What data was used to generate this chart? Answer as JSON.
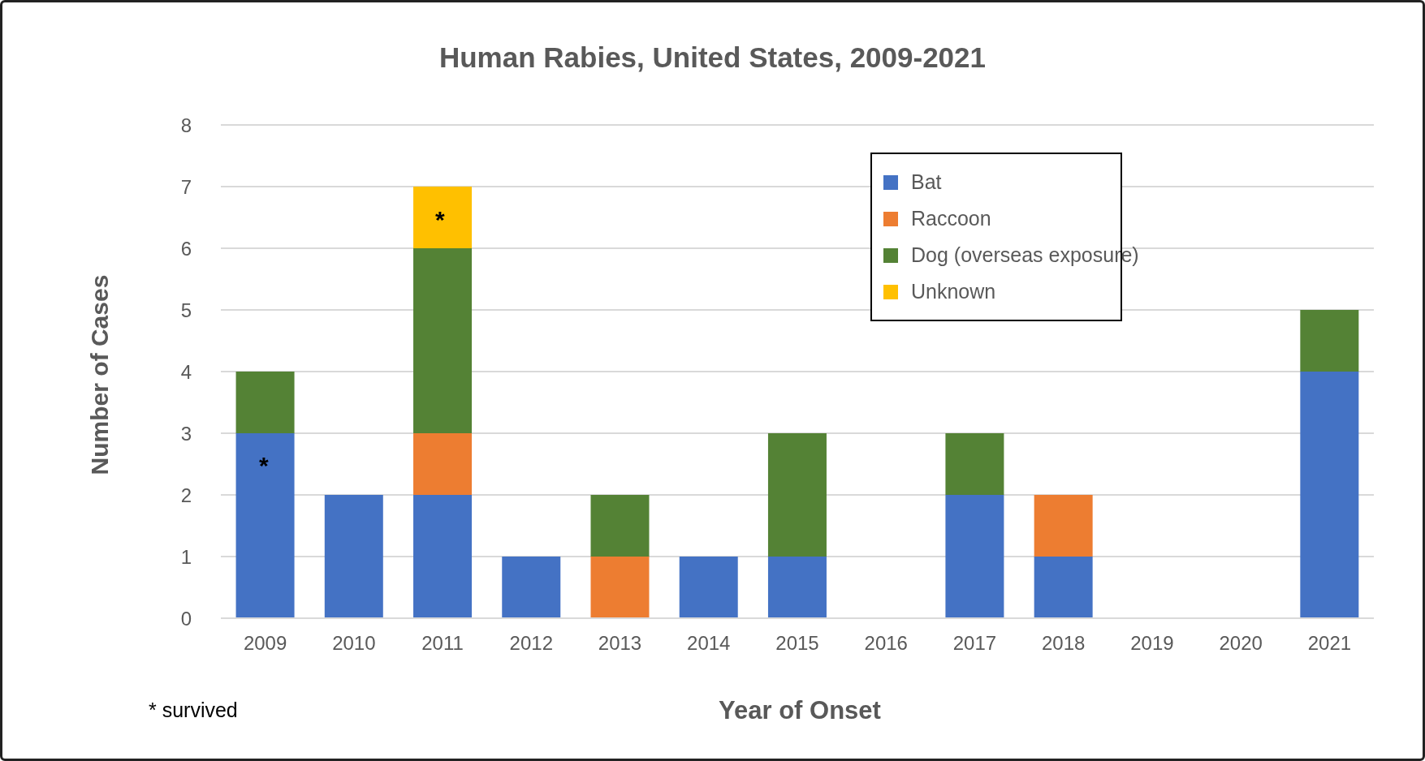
{
  "chart_data": {
    "type": "bar",
    "title": "Human Rabies, United States, 2009-2021",
    "xlabel": "Year of Onset",
    "ylabel": "Number of Cases",
    "categories": [
      "2009",
      "2010",
      "2011",
      "2012",
      "2013",
      "2014",
      "2015",
      "2016",
      "2017",
      "2018",
      "2019",
      "2020",
      "2021"
    ],
    "stacked": true,
    "series": [
      {
        "name": "Bat",
        "color": "#4472c4",
        "values": [
          3,
          2,
          2,
          1,
          0,
          1,
          1,
          0,
          2,
          1,
          0,
          0,
          4
        ]
      },
      {
        "name": "Raccoon",
        "color": "#ed7d31",
        "values": [
          0,
          0,
          1,
          0,
          1,
          0,
          0,
          0,
          0,
          1,
          0,
          0,
          0
        ]
      },
      {
        "name": "Dog (overseas exposure)",
        "color": "#548235",
        "values": [
          1,
          0,
          3,
          0,
          1,
          0,
          2,
          0,
          1,
          0,
          0,
          0,
          1
        ]
      },
      {
        "name": "Unknown",
        "color": "#ffc000",
        "values": [
          0,
          0,
          1,
          0,
          0,
          0,
          0,
          0,
          0,
          0,
          0,
          0,
          0
        ]
      }
    ],
    "ylim": [
      0,
      8
    ],
    "yticks": [
      0,
      1,
      2,
      3,
      4,
      5,
      6,
      7,
      8
    ],
    "grid": "y",
    "legend": "top right",
    "annotations": [
      "*",
      "*",
      "* survived"
    ]
  }
}
